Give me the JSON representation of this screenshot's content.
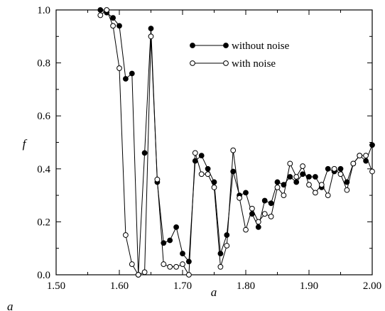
{
  "chart_data": {
    "type": "line",
    "xlabel": "a",
    "ylabel": "f",
    "xlim": [
      1.5,
      2.0
    ],
    "ylim": [
      0.0,
      1.0
    ],
    "x_ticks": [
      "1.50",
      "1.60",
      "1.70",
      "1.80",
      "1.90",
      "2.00"
    ],
    "y_ticks": [
      "0.0",
      "0.2",
      "0.4",
      "0.6",
      "0.8",
      "1.0"
    ],
    "legend_position": "top-right",
    "series": [
      {
        "name": "without noise",
        "marker": "filled-circle",
        "color": "#000000",
        "x": [
          1.57,
          1.58,
          1.59,
          1.6,
          1.61,
          1.62,
          1.63,
          1.64,
          1.65,
          1.66,
          1.67,
          1.68,
          1.69,
          1.7,
          1.71,
          1.72,
          1.73,
          1.74,
          1.75,
          1.76,
          1.77,
          1.78,
          1.79,
          1.8,
          1.81,
          1.82,
          1.83,
          1.84,
          1.85,
          1.86,
          1.87,
          1.88,
          1.89,
          1.9,
          1.91,
          1.92,
          1.93,
          1.94,
          1.95,
          1.96,
          1.97,
          1.98,
          1.99,
          2.0
        ],
        "y": [
          1.0,
          0.99,
          0.97,
          0.94,
          0.74,
          0.76,
          0.0,
          0.46,
          0.93,
          0.35,
          0.12,
          0.13,
          0.18,
          0.08,
          0.05,
          0.43,
          0.45,
          0.4,
          0.35,
          0.08,
          0.15,
          0.39,
          0.3,
          0.31,
          0.23,
          0.18,
          0.28,
          0.27,
          0.35,
          0.34,
          0.37,
          0.35,
          0.38,
          0.37,
          0.37,
          0.33,
          0.4,
          0.39,
          0.4,
          0.35,
          0.42,
          0.45,
          0.43,
          0.49
        ]
      },
      {
        "name": "with noise",
        "marker": "open-circle",
        "color": "#000000",
        "x": [
          1.57,
          1.58,
          1.59,
          1.6,
          1.61,
          1.62,
          1.63,
          1.64,
          1.65,
          1.66,
          1.67,
          1.68,
          1.69,
          1.7,
          1.71,
          1.72,
          1.73,
          1.74,
          1.75,
          1.76,
          1.77,
          1.78,
          1.79,
          1.8,
          1.81,
          1.82,
          1.83,
          1.84,
          1.85,
          1.86,
          1.87,
          1.88,
          1.89,
          1.9,
          1.91,
          1.92,
          1.93,
          1.94,
          1.95,
          1.96,
          1.97,
          1.98,
          1.99,
          2.0
        ],
        "y": [
          0.98,
          1.0,
          0.94,
          0.78,
          0.15,
          0.04,
          0.0,
          0.01,
          0.9,
          0.36,
          0.04,
          0.03,
          0.03,
          0.04,
          0.0,
          0.46,
          0.38,
          0.38,
          0.33,
          0.03,
          0.11,
          0.47,
          0.29,
          0.17,
          0.25,
          0.2,
          0.23,
          0.22,
          0.33,
          0.3,
          0.42,
          0.37,
          0.41,
          0.34,
          0.31,
          0.34,
          0.3,
          0.4,
          0.38,
          0.32,
          0.42,
          0.45,
          0.45,
          0.39
        ]
      }
    ]
  },
  "caption_fragment": "a"
}
